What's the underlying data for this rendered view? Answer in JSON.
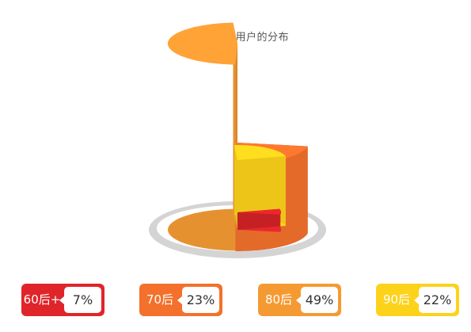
{
  "chart_data": {
    "type": "pie",
    "title": "不同年龄段用户的分布",
    "categories": [
      "60后+",
      "70后",
      "80后",
      "90后"
    ],
    "values": [
      7,
      23,
      49,
      22
    ],
    "value_labels": [
      "7%",
      "23%",
      "49%",
      "22%"
    ],
    "colors": [
      "#e0252a",
      "#f3712c",
      "#f59a33",
      "#fcd21b"
    ],
    "legend_placement": "bottom",
    "grid": false
  }
}
